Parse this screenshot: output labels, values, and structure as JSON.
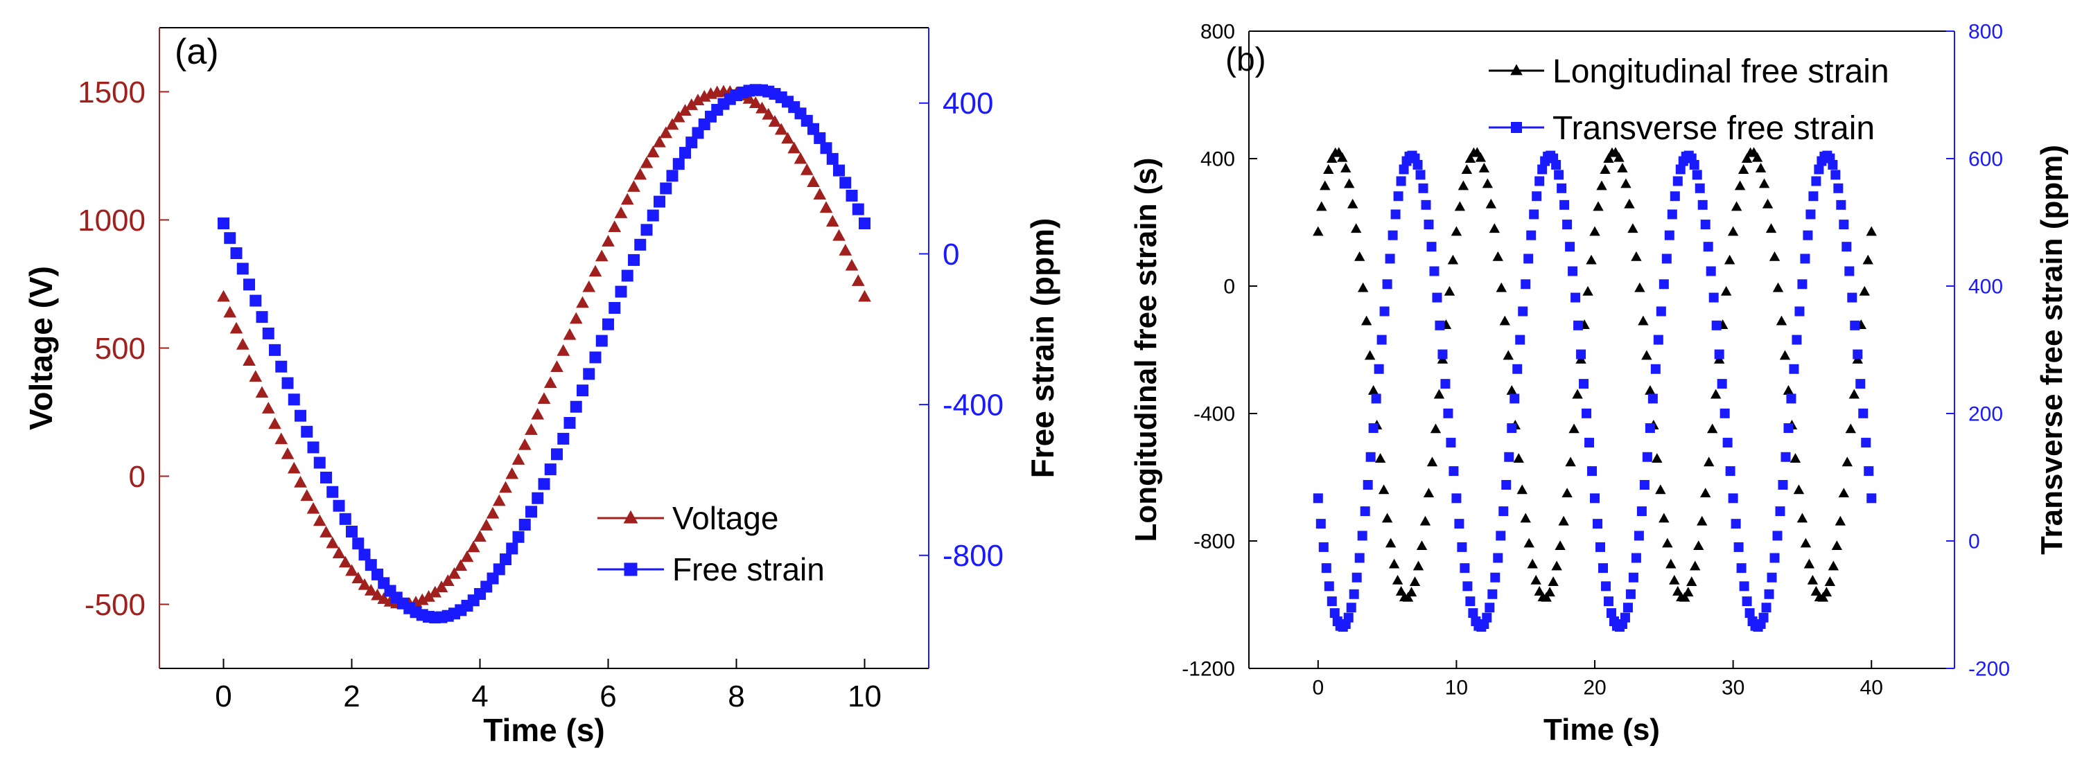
{
  "chart_data": [
    {
      "panel": "(a)",
      "type": "scatter",
      "xlabel": "Time (s)",
      "xlim": [
        -1,
        11
      ],
      "xticks": [
        0,
        2,
        4,
        6,
        8,
        10
      ],
      "left_axis": {
        "label": "Voltage (V)",
        "lim": [
          -750,
          1750
        ],
        "ticks": [
          -500,
          0,
          500,
          1000,
          1500
        ],
        "color": "#a0201e"
      },
      "right_axis": {
        "label": "Free strain (ppm)",
        "lim": [
          -1100,
          600
        ],
        "ticks": [
          -800,
          -400,
          0,
          400
        ],
        "color": "#1a1aff"
      },
      "legend_position": "bottom-right",
      "series": [
        {
          "name": "Voltage",
          "axis": "left",
          "marker": "triangle",
          "color": "#a0201e",
          "x_start": 0,
          "x_end": 10,
          "step": 0.1,
          "model": "sine",
          "offset": 500,
          "amplitude": 1000,
          "period": 10,
          "phase_deg": 168.5
        },
        {
          "name": "Free strain",
          "axis": "right",
          "marker": "square",
          "color": "#1a1aff",
          "x_start": 0,
          "x_end": 10,
          "step": 0.1,
          "model": "sine",
          "offset": -265,
          "amplitude": 700,
          "period": 10,
          "phase_deg": 150.4
        }
      ]
    },
    {
      "panel": "(b)",
      "type": "scatter",
      "xlabel": "Time (s)",
      "xlim": [
        -5,
        46
      ],
      "xticks": [
        0,
        10,
        20,
        30,
        40
      ],
      "left_axis": {
        "label": "Longitudinal free strain (s)",
        "lim": [
          -1200,
          800
        ],
        "ticks": [
          -1200,
          -800,
          -400,
          0,
          400,
          800
        ],
        "color": "#000000"
      },
      "right_axis": {
        "label": "Transverse free strain (ppm)",
        "lim": [
          -200,
          800
        ],
        "ticks": [
          -200,
          0,
          200,
          400,
          600,
          800
        ],
        "color": "#1a1aff"
      },
      "legend_position": "top-right",
      "series": [
        {
          "name": "Longitudinal free strain",
          "axis": "left",
          "marker": "triangle",
          "color": "#000000",
          "x_start": 0,
          "x_end": 40,
          "step": 0.25,
          "model": "sine",
          "offset": -280,
          "amplitude": 700,
          "period": 10,
          "phase_deg": 40
        },
        {
          "name": "Transverse free strain",
          "axis": "right",
          "marker": "square",
          "color": "#1a1aff",
          "x_start": 0,
          "x_end": 40,
          "step": 0.2,
          "model": "sine",
          "offset": 235,
          "amplitude": 370,
          "period": 10,
          "phase_deg": 207
        }
      ]
    }
  ]
}
